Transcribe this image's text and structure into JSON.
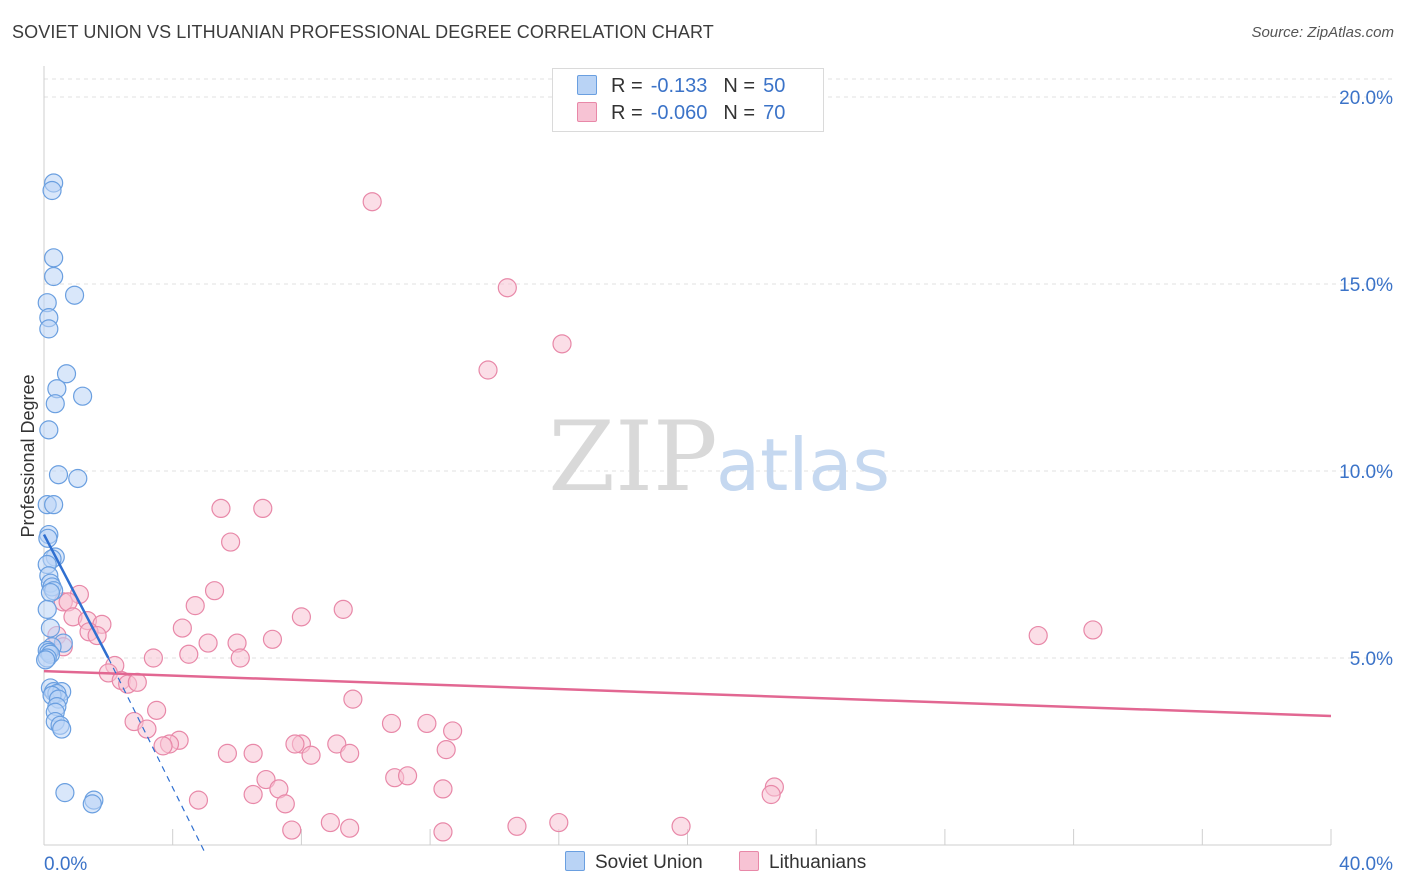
{
  "title": "SOVIET UNION VS LITHUANIAN PROFESSIONAL DEGREE CORRELATION CHART",
  "source": "Source: ZipAtlas.com",
  "watermark": {
    "zip": "ZIP",
    "atlas": "atlas"
  },
  "legend": {
    "rows": [
      {
        "r_label": "R =",
        "r_value": "-0.133",
        "n_label": "N =",
        "n_value": "50"
      },
      {
        "r_label": "R =",
        "r_value": "-0.060",
        "n_label": "N =",
        "n_value": "70"
      }
    ]
  },
  "bottom_legend": [
    "Soviet Union",
    "Lithuanians"
  ],
  "colors": {
    "soviet_fill": "#b9d3f5",
    "soviet_stroke": "#6a9fe0",
    "soviet_line": "#2f6fd0",
    "lith_fill": "#f7c3d4",
    "lith_stroke": "#e888a8",
    "lith_line": "#e26792",
    "tick_label": "#3b73c8"
  },
  "chart_data": {
    "type": "scatter",
    "title": "SOVIET UNION VS LITHUANIAN PROFESSIONAL DEGREE CORRELATION CHART",
    "xlabel": "",
    "ylabel": "Professional Degree",
    "xlim": [
      0,
      40
    ],
    "ylim": [
      0,
      20
    ],
    "x_tick_labels": [
      "0.0%",
      "40.0%"
    ],
    "y_ticks": [
      5,
      10,
      15,
      20
    ],
    "y_tick_labels": [
      "5.0%",
      "10.0%",
      "15.0%",
      "20.0%"
    ],
    "series": [
      {
        "name": "Soviet Union",
        "r": -0.133,
        "n": 50,
        "trend": {
          "x": [
            0,
            2.0
          ],
          "y": [
            8.3,
            5.0
          ],
          "dashed_to": [
            5.0,
            -0.2
          ]
        },
        "points": [
          [
            0.3,
            17.7
          ],
          [
            0.25,
            17.5
          ],
          [
            0.3,
            15.7
          ],
          [
            0.3,
            15.2
          ],
          [
            0.95,
            14.7
          ],
          [
            0.1,
            14.5
          ],
          [
            0.15,
            14.1
          ],
          [
            0.15,
            13.8
          ],
          [
            0.7,
            12.6
          ],
          [
            0.4,
            12.2
          ],
          [
            1.2,
            12.0
          ],
          [
            0.35,
            11.8
          ],
          [
            0.15,
            11.1
          ],
          [
            0.45,
            9.9
          ],
          [
            1.05,
            9.8
          ],
          [
            0.1,
            9.1
          ],
          [
            0.3,
            9.1
          ],
          [
            0.15,
            8.3
          ],
          [
            0.12,
            8.2
          ],
          [
            0.35,
            7.7
          ],
          [
            0.25,
            7.65
          ],
          [
            0.1,
            7.5
          ],
          [
            0.15,
            7.2
          ],
          [
            0.2,
            7.0
          ],
          [
            0.25,
            6.9
          ],
          [
            0.3,
            6.8
          ],
          [
            0.2,
            6.75
          ],
          [
            0.1,
            6.3
          ],
          [
            0.2,
            5.8
          ],
          [
            0.6,
            5.4
          ],
          [
            0.25,
            5.3
          ],
          [
            0.1,
            5.2
          ],
          [
            0.15,
            5.15
          ],
          [
            0.2,
            5.1
          ],
          [
            0.1,
            5.0
          ],
          [
            0.05,
            4.95
          ],
          [
            0.2,
            4.2
          ],
          [
            0.3,
            4.1
          ],
          [
            0.55,
            4.1
          ],
          [
            0.4,
            4.05
          ],
          [
            0.25,
            4.0
          ],
          [
            0.45,
            3.9
          ],
          [
            0.4,
            3.7
          ],
          [
            0.35,
            3.55
          ],
          [
            0.35,
            3.3
          ],
          [
            0.5,
            3.2
          ],
          [
            0.55,
            3.1
          ],
          [
            0.65,
            1.4
          ],
          [
            1.55,
            1.2
          ],
          [
            1.5,
            1.1
          ]
        ]
      },
      {
        "name": "Lithuanians",
        "r": -0.06,
        "n": 70,
        "trend": {
          "x": [
            0,
            40
          ],
          "y": [
            4.65,
            3.45
          ]
        },
        "points": [
          [
            10.2,
            17.2
          ],
          [
            14.4,
            14.9
          ],
          [
            16.1,
            13.4
          ],
          [
            13.8,
            12.7
          ],
          [
            5.5,
            9.0
          ],
          [
            6.8,
            9.0
          ],
          [
            5.8,
            8.1
          ],
          [
            5.3,
            6.8
          ],
          [
            1.1,
            6.7
          ],
          [
            0.6,
            6.5
          ],
          [
            0.75,
            6.5
          ],
          [
            4.7,
            6.4
          ],
          [
            9.3,
            6.3
          ],
          [
            8.0,
            6.1
          ],
          [
            0.9,
            6.1
          ],
          [
            1.35,
            6.0
          ],
          [
            1.8,
            5.9
          ],
          [
            4.3,
            5.8
          ],
          [
            1.4,
            5.7
          ],
          [
            1.65,
            5.6
          ],
          [
            0.4,
            5.6
          ],
          [
            30.9,
            5.6
          ],
          [
            32.6,
            5.75
          ],
          [
            7.1,
            5.5
          ],
          [
            5.1,
            5.4
          ],
          [
            6.0,
            5.4
          ],
          [
            0.6,
            5.3
          ],
          [
            4.5,
            5.1
          ],
          [
            6.1,
            5.0
          ],
          [
            3.4,
            5.0
          ],
          [
            2.2,
            4.8
          ],
          [
            2.0,
            4.6
          ],
          [
            2.4,
            4.4
          ],
          [
            2.6,
            4.3
          ],
          [
            2.9,
            4.35
          ],
          [
            9.6,
            3.9
          ],
          [
            3.5,
            3.6
          ],
          [
            2.8,
            3.3
          ],
          [
            10.8,
            3.25
          ],
          [
            11.9,
            3.25
          ],
          [
            3.2,
            3.1
          ],
          [
            12.7,
            3.05
          ],
          [
            4.2,
            2.8
          ],
          [
            3.9,
            2.7
          ],
          [
            3.7,
            2.65
          ],
          [
            8.0,
            2.7
          ],
          [
            7.8,
            2.7
          ],
          [
            9.1,
            2.7
          ],
          [
            12.5,
            2.55
          ],
          [
            8.3,
            2.4
          ],
          [
            9.5,
            2.45
          ],
          [
            5.7,
            2.45
          ],
          [
            6.5,
            2.45
          ],
          [
            10.9,
            1.8
          ],
          [
            11.3,
            1.85
          ],
          [
            6.9,
            1.75
          ],
          [
            7.3,
            1.5
          ],
          [
            22.7,
            1.55
          ],
          [
            22.6,
            1.35
          ],
          [
            12.4,
            1.5
          ],
          [
            6.5,
            1.35
          ],
          [
            4.8,
            1.2
          ],
          [
            7.5,
            1.1
          ],
          [
            8.9,
            0.6
          ],
          [
            16.0,
            0.6
          ],
          [
            14.7,
            0.5
          ],
          [
            9.5,
            0.45
          ],
          [
            19.8,
            0.5
          ],
          [
            7.7,
            0.4
          ],
          [
            12.4,
            0.35
          ]
        ]
      }
    ]
  }
}
